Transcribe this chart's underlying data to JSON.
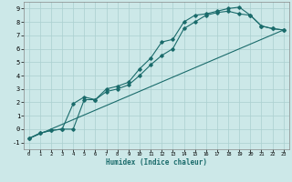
{
  "xlabel": "Humidex (Indice chaleur)",
  "bg_color": "#cce8e8",
  "grid_color": "#aacfcf",
  "line_color": "#1a6b6b",
  "xlim": [
    -0.5,
    23.5
  ],
  "ylim": [
    -1.5,
    9.5
  ],
  "xticks": [
    0,
    1,
    2,
    3,
    4,
    5,
    6,
    7,
    8,
    9,
    10,
    11,
    12,
    13,
    14,
    15,
    16,
    17,
    18,
    19,
    20,
    21,
    22,
    23
  ],
  "yticks": [
    -1,
    0,
    1,
    2,
    3,
    4,
    5,
    6,
    7,
    8,
    9
  ],
  "line1_x": [
    0,
    1,
    2,
    3,
    4,
    5,
    6,
    7,
    8,
    9,
    10,
    11,
    12,
    13,
    14,
    15,
    16,
    17,
    18,
    19,
    20,
    21,
    22,
    23
  ],
  "line1_y": [
    -0.7,
    -0.3,
    -0.1,
    0.0,
    0.0,
    2.2,
    2.2,
    3.0,
    3.2,
    3.5,
    4.5,
    5.3,
    6.5,
    6.7,
    8.0,
    8.5,
    8.6,
    8.8,
    9.0,
    9.1,
    8.5,
    7.7,
    7.5,
    7.4
  ],
  "line2_x": [
    0,
    1,
    2,
    3,
    4,
    5,
    6,
    7,
    8,
    9,
    10,
    11,
    12,
    13,
    14,
    15,
    16,
    17,
    18,
    19,
    20,
    21,
    22,
    23
  ],
  "line2_y": [
    -0.7,
    -0.3,
    -0.1,
    0.0,
    1.9,
    2.4,
    2.2,
    2.8,
    3.0,
    3.3,
    4.0,
    4.8,
    5.5,
    6.0,
    7.5,
    8.0,
    8.5,
    8.7,
    8.8,
    8.6,
    8.5,
    7.7,
    7.5,
    7.4
  ],
  "line3_x": [
    0,
    23
  ],
  "line3_y": [
    -0.7,
    7.4
  ]
}
